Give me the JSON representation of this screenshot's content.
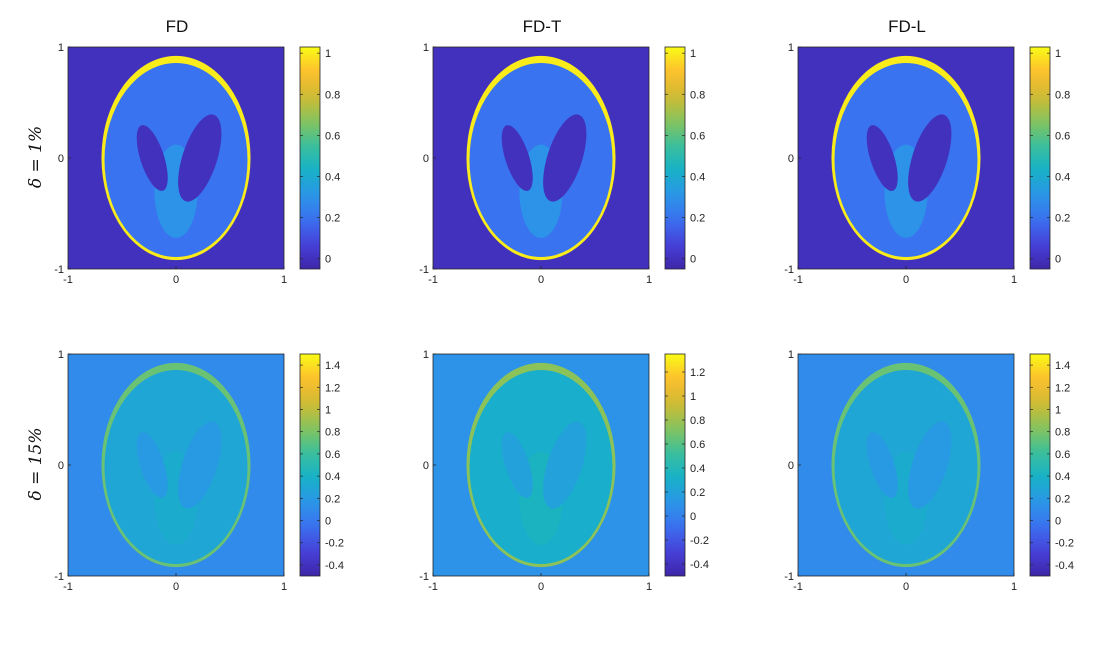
{
  "chart_data": {
    "type": "heatmap",
    "columns": [
      "FD",
      "FD-T",
      "FD-L"
    ],
    "rows": [
      "δ = 1%",
      "δ = 15%"
    ],
    "panels": [
      {
        "row": 0,
        "col": 0,
        "title": "FD",
        "row_label": "δ = 1%",
        "x_ticks": [
          "-1",
          "0",
          "1"
        ],
        "y_ticks": [
          "1",
          "0",
          "-1"
        ],
        "xlim": [
          -1,
          1
        ],
        "ylim": [
          -1,
          1
        ],
        "colorbar": {
          "min": -0.05,
          "max": 1.03,
          "ticks": [
            0,
            0.2,
            0.4,
            0.6,
            0.8,
            1
          ],
          "tick_labels": [
            "0",
            "0.2",
            "0.4",
            "0.6",
            "0.8",
            "1"
          ]
        },
        "levels": {
          "background": 0,
          "skull": 1,
          "brain": 0.2,
          "ventricles": 0,
          "central_region": 0.3
        }
      },
      {
        "row": 0,
        "col": 1,
        "title": "FD-T",
        "row_label": "",
        "x_ticks": [
          "-1",
          "0",
          "1"
        ],
        "y_ticks": [
          "1",
          "0",
          "-1"
        ],
        "xlim": [
          -1,
          1
        ],
        "ylim": [
          -1,
          1
        ],
        "colorbar": {
          "min": -0.05,
          "max": 1.03,
          "ticks": [
            0,
            0.2,
            0.4,
            0.6,
            0.8,
            1
          ],
          "tick_labels": [
            "0",
            "0.2",
            "0.4",
            "0.6",
            "0.8",
            "1"
          ]
        },
        "levels": {
          "background": 0,
          "skull": 1,
          "brain": 0.2,
          "ventricles": 0,
          "central_region": 0.3
        }
      },
      {
        "row": 0,
        "col": 2,
        "title": "FD-L",
        "row_label": "",
        "x_ticks": [
          "-1",
          "0",
          "1"
        ],
        "y_ticks": [
          "1",
          "0",
          "-1"
        ],
        "xlim": [
          -1,
          1
        ],
        "ylim": [
          -1,
          1
        ],
        "colorbar": {
          "min": -0.05,
          "max": 1.03,
          "ticks": [
            0,
            0.2,
            0.4,
            0.6,
            0.8,
            1
          ],
          "tick_labels": [
            "0",
            "0.2",
            "0.4",
            "0.6",
            "0.8",
            "1"
          ]
        },
        "levels": {
          "background": 0,
          "skull": 1,
          "brain": 0.2,
          "ventricles": 0,
          "central_region": 0.3
        }
      },
      {
        "row": 1,
        "col": 0,
        "title": "",
        "row_label": "δ = 15%",
        "x_ticks": [
          "-1",
          "0",
          "1"
        ],
        "y_ticks": [
          "1",
          "0",
          "-1"
        ],
        "xlim": [
          -1,
          1
        ],
        "ylim": [
          -1,
          1
        ],
        "colorbar": {
          "min": -0.5,
          "max": 1.5,
          "ticks": [
            -0.4,
            -0.2,
            0,
            0.2,
            0.4,
            0.6,
            0.8,
            1,
            1.2,
            1.4
          ],
          "tick_labels": [
            "-0.4",
            "-0.2",
            "0",
            "0.2",
            "0.4",
            "0.6",
            "0.8",
            "1",
            "1.2",
            "1.4"
          ]
        },
        "levels": {
          "background": 0.1,
          "skull": 0.75,
          "brain": 0.3,
          "ventricles": 0.2,
          "central_region": 0.35
        }
      },
      {
        "row": 1,
        "col": 1,
        "title": "",
        "row_label": "",
        "x_ticks": [
          "-1",
          "0",
          "1"
        ],
        "y_ticks": [
          "1",
          "0",
          "-1"
        ],
        "xlim": [
          -1,
          1
        ],
        "ylim": [
          -1,
          1
        ],
        "colorbar": {
          "min": -0.5,
          "max": 1.35,
          "ticks": [
            -0.4,
            -0.2,
            0,
            0.2,
            0.4,
            0.6,
            0.8,
            1,
            1.2
          ],
          "tick_labels": [
            "-0.4",
            "-0.2",
            "0",
            "0.2",
            "0.4",
            "0.6",
            "0.8",
            "1",
            "1.2"
          ]
        },
        "levels": {
          "background": 0.1,
          "skull": 0.75,
          "brain": 0.3,
          "ventricles": 0.2,
          "central_region": 0.35
        }
      },
      {
        "row": 1,
        "col": 2,
        "title": "",
        "row_label": "",
        "x_ticks": [
          "-1",
          "0",
          "1"
        ],
        "y_ticks": [
          "1",
          "0",
          "-1"
        ],
        "xlim": [
          -1,
          1
        ],
        "ylim": [
          -1,
          1
        ],
        "colorbar": {
          "min": -0.5,
          "max": 1.5,
          "ticks": [
            -0.4,
            -0.2,
            0,
            0.2,
            0.4,
            0.6,
            0.8,
            1,
            1.2,
            1.4
          ],
          "tick_labels": [
            "-0.4",
            "-0.2",
            "0",
            "0.2",
            "0.4",
            "0.6",
            "0.8",
            "1",
            "1.2",
            "1.4"
          ]
        },
        "levels": {
          "background": 0.1,
          "skull": 0.75,
          "brain": 0.3,
          "ventricles": 0.2,
          "central_region": 0.35
        }
      }
    ],
    "colormap": "parula",
    "colormap_stops": [
      "#3e26a8",
      "#4741d9",
      "#3a70f0",
      "#2b96e8",
      "#17b1c7",
      "#3bbf9c",
      "#86c45c",
      "#d0ba33",
      "#fdbf2e",
      "#f9fb15"
    ],
    "grid": false,
    "legend": "colorbar-right"
  }
}
